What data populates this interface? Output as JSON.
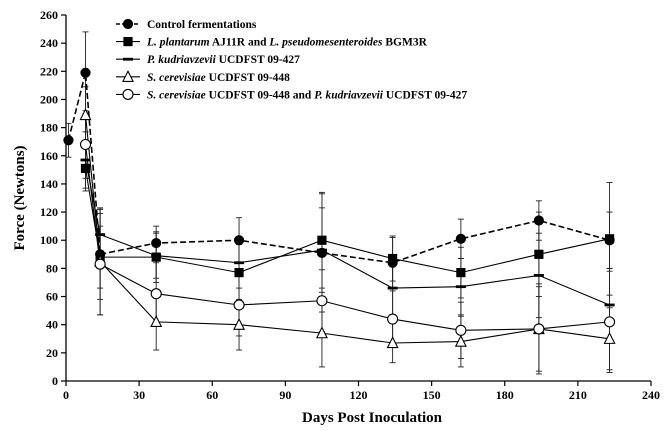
{
  "chart_data": {
    "type": "line",
    "xlabel": "Days Post Inoculation",
    "ylabel": "Force (Newtons)",
    "xlim": [
      0,
      240
    ],
    "ylim": [
      0,
      260
    ],
    "xticks": [
      0,
      30,
      60,
      90,
      120,
      150,
      180,
      210,
      240
    ],
    "yticks": [
      0,
      20,
      40,
      60,
      80,
      100,
      120,
      140,
      160,
      180,
      200,
      220,
      240,
      260
    ],
    "grid": false,
    "legend_position": "top-center",
    "series": [
      {
        "name": "Control fermentations",
        "name_parts": [
          {
            "text": "Control fermentations",
            "italic": false
          }
        ],
        "marker": "filled-circle",
        "line": "dashed",
        "points": [
          {
            "x": 1,
            "y": 171,
            "err": 12
          },
          {
            "x": 8,
            "y": 219,
            "err": 29
          },
          {
            "x": 14,
            "y": 90,
            "err": 32
          },
          {
            "x": 37,
            "y": 98,
            "err": 12
          },
          {
            "x": 71,
            "y": 100,
            "err": 16
          },
          {
            "x": 105,
            "y": 91,
            "err": 42
          },
          {
            "x": 134,
            "y": 84,
            "err": 18
          },
          {
            "x": 162,
            "y": 101,
            "err": 14
          },
          {
            "x": 194,
            "y": 114,
            "err": 14
          },
          {
            "x": 223,
            "y": 100,
            "err": 20
          }
        ]
      },
      {
        "name": "L. plantarum AJ11R and L. pseudomesenteroides BGM3R",
        "name_parts": [
          {
            "text": "L. plantarum",
            "italic": true
          },
          {
            "text": " AJ11R and ",
            "italic": false
          },
          {
            "text": "L. pseudomesenteroides",
            "italic": true
          },
          {
            "text": " BGM3R",
            "italic": false
          }
        ],
        "marker": "filled-square",
        "line": "solid",
        "points": [
          {
            "x": 8,
            "y": 151,
            "err": 16
          },
          {
            "x": 14,
            "y": 88,
            "err": 22
          },
          {
            "x": 37,
            "y": 88,
            "err": 18
          },
          {
            "x": 71,
            "y": 77,
            "err": 20
          },
          {
            "x": 105,
            "y": 100,
            "err": 34
          },
          {
            "x": 134,
            "y": 87,
            "err": 16
          },
          {
            "x": 162,
            "y": 77,
            "err": 18
          },
          {
            "x": 194,
            "y": 90,
            "err": 30
          },
          {
            "x": 223,
            "y": 101,
            "err": 40
          }
        ]
      },
      {
        "name": "P. kudriavzevii UCDFST 09-427",
        "name_parts": [
          {
            "text": "P. kudriavzevii",
            "italic": true
          },
          {
            "text": " UCDFST 09-427",
            "italic": false
          }
        ],
        "marker": "dash",
        "line": "solid",
        "points": [
          {
            "x": 8,
            "y": 157,
            "err": 20
          },
          {
            "x": 14,
            "y": 104,
            "err": 18
          },
          {
            "x": 37,
            "y": 89,
            "err": 16
          },
          {
            "x": 71,
            "y": 84,
            "err": 18
          },
          {
            "x": 105,
            "y": 93,
            "err": 30
          },
          {
            "x": 134,
            "y": 66,
            "err": 22
          },
          {
            "x": 162,
            "y": 67,
            "err": 20
          },
          {
            "x": 194,
            "y": 75,
            "err": 30
          },
          {
            "x": 223,
            "y": 54,
            "err": 26
          }
        ]
      },
      {
        "name": "S. cerevisiae UCDFST 09-448",
        "name_parts": [
          {
            "text": "S. cerevisiae",
            "italic": true
          },
          {
            "text": " UCDFST 09-448",
            "italic": false
          }
        ],
        "marker": "open-triangle",
        "line": "solid",
        "points": [
          {
            "x": 8,
            "y": 189,
            "err": 20
          },
          {
            "x": 14,
            "y": 85,
            "err": 38
          },
          {
            "x": 37,
            "y": 42,
            "err": 20
          },
          {
            "x": 71,
            "y": 40,
            "err": 18
          },
          {
            "x": 105,
            "y": 34,
            "err": 24
          },
          {
            "x": 134,
            "y": 27,
            "err": 14
          },
          {
            "x": 162,
            "y": 28,
            "err": 18
          },
          {
            "x": 194,
            "y": 37,
            "err": 30
          },
          {
            "x": 223,
            "y": 30,
            "err": 22
          }
        ]
      },
      {
        "name": "S. cerevisiae UCDFST 09-448 and P. kudriavzevii UCDFST 09-427",
        "name_parts": [
          {
            "text": "S. cerevisiae",
            "italic": true
          },
          {
            "text": " UCDFST 09-448 and ",
            "italic": false
          },
          {
            "text": "P. kudriavzevii",
            "italic": true
          },
          {
            "text": " UCDFST 09-427",
            "italic": false
          }
        ],
        "marker": "open-circle",
        "line": "solid",
        "points": [
          {
            "x": 8,
            "y": 168,
            "err": 24
          },
          {
            "x": 14,
            "y": 83,
            "err": 36
          },
          {
            "x": 37,
            "y": 62,
            "err": 22
          },
          {
            "x": 71,
            "y": 54,
            "err": 22
          },
          {
            "x": 105,
            "y": 57,
            "err": 22
          },
          {
            "x": 134,
            "y": 44,
            "err": 20
          },
          {
            "x": 162,
            "y": 36,
            "err": 20
          },
          {
            "x": 194,
            "y": 37,
            "err": 32
          },
          {
            "x": 223,
            "y": 42,
            "err": 36
          }
        ]
      }
    ]
  }
}
